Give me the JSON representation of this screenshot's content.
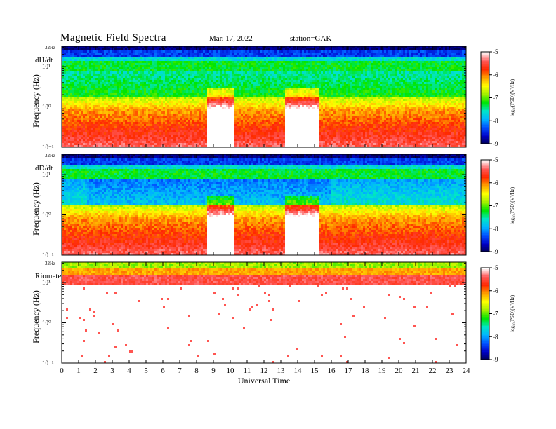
{
  "header": {
    "title": "Magnetic  Field  Spectra",
    "date": "Mar. 17, 2022",
    "station": "station=GAK"
  },
  "chart_data": [
    {
      "type": "heatmap",
      "label": "dH/dt",
      "ylabel": "Frequency (Hz)",
      "yscale": "log",
      "ylim": [
        0.1,
        32
      ],
      "ytick_labels": [
        "32Hz",
        "10¹",
        "10⁰",
        "10⁻¹"
      ],
      "colorbar": {
        "label": "log₁₀(PSD)(V²/Hz)",
        "range": [
          -9,
          -5
        ],
        "ticks": [
          "-5",
          "-6",
          "-7",
          "-8",
          "-9"
        ]
      },
      "features": [
        "dark blue band near 32 Hz",
        "green line near 7-8 Hz",
        "white/red broadband enhancements around 9-10 UT and 13.5-15 UT below 1 Hz"
      ]
    },
    {
      "type": "heatmap",
      "label": "dD/dt",
      "ylabel": "Frequency (Hz)",
      "yscale": "log",
      "ylim": [
        0.1,
        32
      ],
      "ytick_labels": [
        "32Hz",
        "10¹",
        "10⁰",
        "10⁻¹"
      ],
      "colorbar": {
        "label": "log₁₀(PSD)(V²/Hz)",
        "range": [
          -9,
          -5
        ],
        "ticks": [
          "-5",
          "-6",
          "-7",
          "-8",
          "-9"
        ]
      },
      "features": [
        "dark blue band near 32 Hz",
        "green line near 7-8 Hz",
        "white/red broadband enhancements around 8.5-10 UT and 13.5-15 UT below 1 Hz"
      ]
    },
    {
      "type": "heatmap",
      "label": "Riometer",
      "ylabel": "Frequency (Hz)",
      "yscale": "log",
      "ylim": [
        0.1,
        32
      ],
      "ytick_labels": [
        "32Hz",
        "10¹",
        "10⁰",
        "10⁻¹"
      ],
      "colorbar": {
        "label": "log₁₀(PSD)(V²/Hz)",
        "range": [
          -9,
          -5
        ],
        "ticks": [
          "-5",
          "-6",
          "-7",
          "-8",
          "-9"
        ]
      },
      "features": [
        "green/yellow/red band above ~10 Hz",
        "mostly white (saturated) below 10 Hz with sparse red specks"
      ]
    }
  ],
  "x_axis": {
    "label": "Universal Time",
    "range": [
      0,
      24
    ],
    "ticks": [
      "0",
      "1",
      "2",
      "3",
      "4",
      "5",
      "6",
      "7",
      "8",
      "9",
      "10",
      "11",
      "12",
      "13",
      "14",
      "15",
      "16",
      "17",
      "18",
      "19",
      "20",
      "21",
      "22",
      "23",
      "24"
    ]
  },
  "colors": {
    "colormap": [
      "#000050",
      "#0000c8",
      "#0050ff",
      "#00b4ff",
      "#00e6c8",
      "#00e600",
      "#a0f000",
      "#ffff00",
      "#ffa000",
      "#ff2800",
      "#ff5a5a",
      "#ffffff"
    ]
  }
}
